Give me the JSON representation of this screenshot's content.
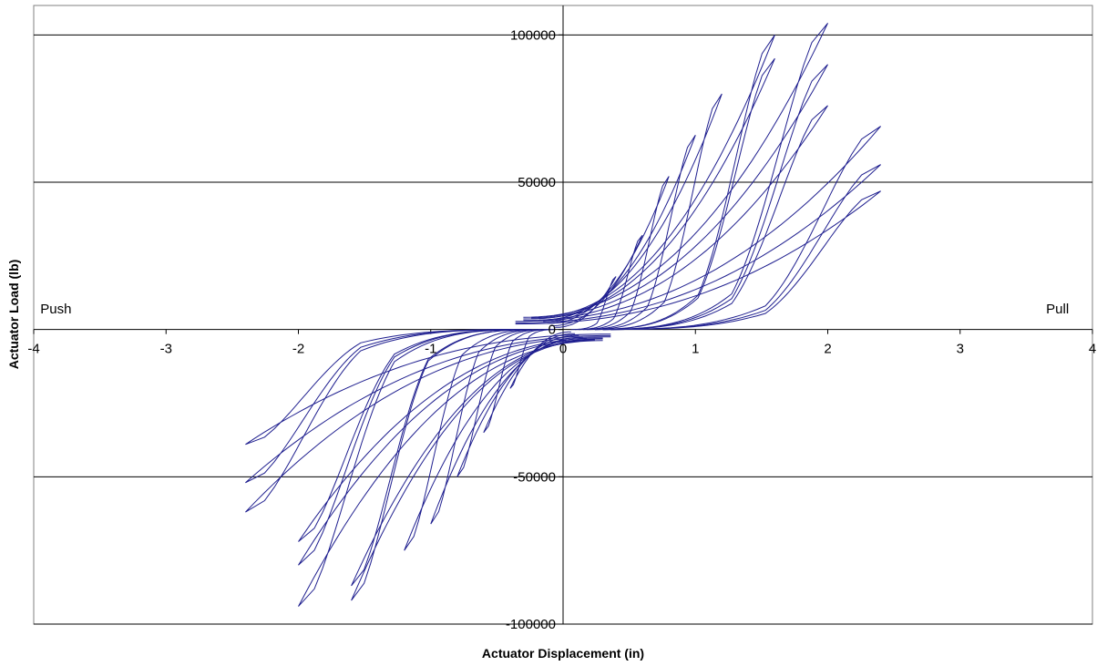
{
  "chart_data": {
    "type": "line",
    "title": "",
    "xlabel": "Actuator Displacement (in)",
    "ylabel": "Actuator Load (lb)",
    "xlim": [
      -4,
      4
    ],
    "ylim": [
      -100000,
      110000
    ],
    "x_ticks": [
      -4,
      -3,
      -2,
      -1,
      0,
      1,
      2,
      3,
      4
    ],
    "x_tick_labels": [
      "-4",
      "-3",
      "-2",
      "-1",
      "0",
      "1",
      "2",
      "3",
      "4"
    ],
    "y_ticks": [
      -100000,
      -50000,
      0,
      50000,
      100000
    ],
    "y_tick_labels": [
      "-100000",
      "-50000",
      "0",
      "50000",
      "100000"
    ],
    "grid": {
      "horizontal": true,
      "vertical": false
    },
    "annotations": [
      {
        "text": "Push",
        "x": -3.95,
        "y": 5500
      },
      {
        "text": "Pull",
        "x": 3.65,
        "y": 5500
      }
    ],
    "series": [
      {
        "color": "#1f1f8f",
        "cycles": [
          {
            "disp": 0.4,
            "load": 18000
          },
          {
            "disp": 0.6,
            "load": 32000
          },
          {
            "disp": 0.8,
            "load": 52000
          },
          {
            "disp": 1.0,
            "load": 66000
          },
          {
            "disp": 1.2,
            "load": 80000
          },
          {
            "disp": 1.6,
            "load": 100000
          },
          {
            "disp": 1.6,
            "load": 92000
          },
          {
            "disp": 2.0,
            "load": 104000
          },
          {
            "disp": 2.0,
            "load": 90000
          },
          {
            "disp": 2.0,
            "load": 76000
          },
          {
            "disp": 2.4,
            "load": 69000
          },
          {
            "disp": 2.4,
            "load": 56000
          },
          {
            "disp": 2.4,
            "load": 47000
          }
        ],
        "cycles_neg": [
          {
            "disp": -0.4,
            "load": -20000
          },
          {
            "disp": -0.6,
            "load": -35000
          },
          {
            "disp": -0.8,
            "load": -50000
          },
          {
            "disp": -1.0,
            "load": -66000
          },
          {
            "disp": -1.2,
            "load": -75000
          },
          {
            "disp": -1.6,
            "load": -92000
          },
          {
            "disp": -1.6,
            "load": -87000
          },
          {
            "disp": -2.0,
            "load": -94000
          },
          {
            "disp": -2.0,
            "load": -80000
          },
          {
            "disp": -2.0,
            "load": -72000
          },
          {
            "disp": -2.4,
            "load": -62000
          },
          {
            "disp": -2.4,
            "load": -52000
          },
          {
            "disp": -2.4,
            "load": -39000
          }
        ]
      }
    ]
  }
}
